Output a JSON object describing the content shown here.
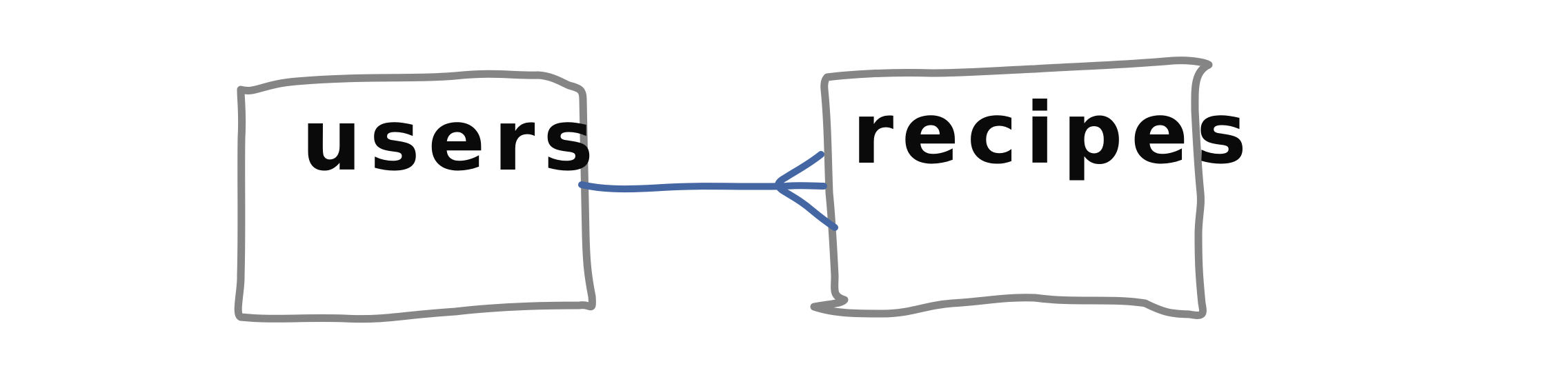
{
  "diagram": {
    "colors": {
      "background": "#ffffff",
      "box_stroke": "#858585",
      "text": "#0a0a0a",
      "connector": "#4467a3"
    },
    "nodes": [
      {
        "id": "users",
        "label": "users"
      },
      {
        "id": "recipes",
        "label": "recipes"
      }
    ],
    "edges": [
      {
        "from": "users",
        "to": "recipes",
        "arrowhead": "open",
        "arrow_at": "recipes"
      }
    ]
  }
}
